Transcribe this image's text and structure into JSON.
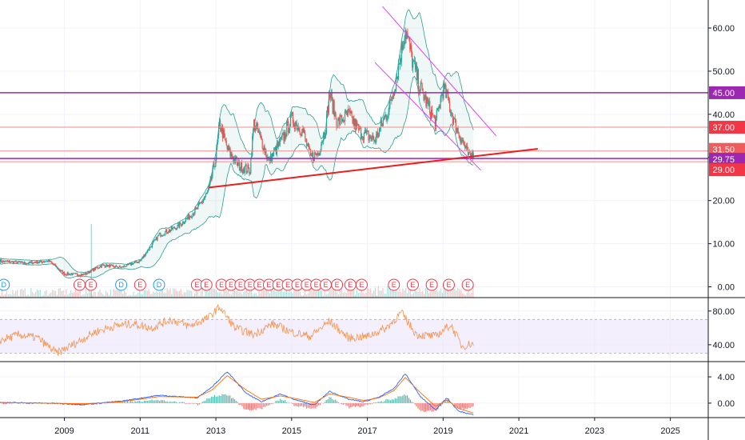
{
  "chart_data": [
    {
      "type": "line",
      "panel": "price",
      "description_visible": "candlestick price with bollinger bands",
      "y_ticks": [
        0,
        10,
        20,
        30,
        40,
        50,
        60
      ],
      "y_tick_labels": [
        "0.00",
        "10.00",
        "20.00",
        "30.00",
        "40.00",
        "50.00",
        "60.00"
      ],
      "ylim": [
        -2.5,
        66.5
      ],
      "price_x": [
        2007.3,
        2008.0,
        2008.6,
        2009.0,
        2009.5,
        2010.0,
        2010.5,
        2011.0,
        2011.5,
        2012.0,
        2012.5,
        2012.8,
        2013.0,
        2013.1,
        2013.3,
        2013.6,
        2013.9,
        2014.0,
        2014.2,
        2014.4,
        2014.6,
        2014.8,
        2015.0,
        2015.3,
        2015.5,
        2015.7,
        2015.9,
        2016.0,
        2016.2,
        2016.5,
        2016.8,
        2017.0,
        2017.2,
        2017.4,
        2017.6,
        2017.8,
        2018.0,
        2018.2,
        2018.4,
        2018.6,
        2018.8,
        2019.0,
        2019.1,
        2019.3,
        2019.5,
        2019.7,
        2019.8
      ],
      "price_close": [
        6,
        5.5,
        6,
        3,
        2.8,
        5,
        4.5,
        6,
        12,
        14,
        18,
        22,
        30,
        38,
        32,
        28,
        27,
        38,
        34,
        29,
        32,
        35,
        39,
        36,
        30,
        31,
        37,
        45,
        38,
        40,
        36,
        35,
        34,
        38,
        42,
        50,
        60,
        52,
        46,
        42,
        38,
        46,
        44,
        38,
        34,
        29.8,
        31.5
      ],
      "resistance_line_45": 45.0,
      "resistance_line_37": 37.0,
      "support_line_31_50": 31.5,
      "support_line_29_75": 29.75,
      "support_line_29": 29.0,
      "trendline": {
        "x": [
          2012.8,
          2021.5
        ],
        "y": [
          23,
          32
        ]
      },
      "channel_upper": {
        "x": [
          2017.4,
          2020.4
        ],
        "y": [
          65,
          35
        ]
      },
      "channel_lower": {
        "x": [
          2017.2,
          2020.0
        ],
        "y": [
          52,
          27
        ]
      },
      "price_tags": [
        {
          "label": "45.00",
          "value": 45.0,
          "color": "#9c27b0"
        },
        {
          "label": "37.00",
          "value": 37.0,
          "color": "#f23645"
        },
        {
          "label": "31.50",
          "value": 31.5,
          "color": "#f05b5b"
        },
        {
          "label": "29.75",
          "value": 29.75,
          "color": "#9c27b0"
        },
        {
          "label": "29.00",
          "value": 29.0,
          "color": "#f23645"
        }
      ],
      "event_badges": [
        {
          "label": "D",
          "x": 2007.4,
          "kind": "dividend"
        },
        {
          "label": "E",
          "x": 2009.4,
          "kind": "earnings"
        },
        {
          "label": "E",
          "x": 2009.7,
          "kind": "earnings"
        },
        {
          "label": "D",
          "x": 2010.5,
          "kind": "dividend"
        },
        {
          "label": "E",
          "x": 2011.0,
          "kind": "earnings"
        },
        {
          "label": "D",
          "x": 2011.5,
          "kind": "dividend"
        },
        {
          "label": "E",
          "x": 2012.5,
          "kind": "earnings"
        },
        {
          "label": "E",
          "x": 2012.75,
          "kind": "earnings"
        },
        {
          "label": "E",
          "x": 2013.15,
          "kind": "earnings"
        },
        {
          "label": "E",
          "x": 2013.4,
          "kind": "earnings"
        },
        {
          "label": "E",
          "x": 2013.65,
          "kind": "earnings"
        },
        {
          "label": "E",
          "x": 2013.9,
          "kind": "earnings"
        },
        {
          "label": "E",
          "x": 2014.15,
          "kind": "earnings"
        },
        {
          "label": "E",
          "x": 2014.4,
          "kind": "earnings"
        },
        {
          "label": "E",
          "x": 2014.65,
          "kind": "earnings"
        },
        {
          "label": "E",
          "x": 2014.9,
          "kind": "earnings"
        },
        {
          "label": "E",
          "x": 2015.15,
          "kind": "earnings"
        },
        {
          "label": "E",
          "x": 2015.4,
          "kind": "earnings"
        },
        {
          "label": "E",
          "x": 2015.65,
          "kind": "earnings"
        },
        {
          "label": "E",
          "x": 2015.9,
          "kind": "earnings"
        },
        {
          "label": "E",
          "x": 2016.2,
          "kind": "earnings"
        },
        {
          "label": "E",
          "x": 2016.55,
          "kind": "earnings"
        },
        {
          "label": "E",
          "x": 2016.85,
          "kind": "earnings"
        },
        {
          "label": "E",
          "x": 2017.7,
          "kind": "earnings"
        },
        {
          "label": "E",
          "x": 2018.2,
          "kind": "earnings"
        },
        {
          "label": "E",
          "x": 2018.7,
          "kind": "earnings"
        },
        {
          "label": "E",
          "x": 2019.15,
          "kind": "earnings"
        },
        {
          "label": "E",
          "x": 2019.65,
          "kind": "earnings"
        }
      ]
    },
    {
      "type": "line",
      "panel": "rsi",
      "y_ticks": [
        40,
        80
      ],
      "y_tick_labels": [
        "40.00",
        "80.00"
      ],
      "ylim": [
        20,
        95
      ],
      "band": [
        30,
        70
      ],
      "x": [
        2007.3,
        2007.8,
        2008.3,
        2008.8,
        2009.3,
        2009.8,
        2010.3,
        2010.8,
        2011.3,
        2011.8,
        2012.3,
        2012.8,
        2013.1,
        2013.5,
        2014.0,
        2014.5,
        2015.0,
        2015.5,
        2016.0,
        2016.5,
        2017.0,
        2017.5,
        2017.9,
        2018.3,
        2018.8,
        2019.2,
        2019.5,
        2019.8
      ],
      "values": [
        45,
        52,
        48,
        30,
        42,
        55,
        62,
        65,
        60,
        70,
        62,
        72,
        85,
        60,
        52,
        65,
        55,
        50,
        68,
        48,
        50,
        60,
        78,
        52,
        50,
        64,
        38,
        42
      ]
    },
    {
      "type": "line",
      "panel": "macd",
      "y_ticks": [
        0,
        4
      ],
      "y_tick_labels": [
        "0.00",
        "4.00"
      ],
      "ylim": [
        -2.2,
        6.2
      ],
      "x": [
        2007.3,
        2008.5,
        2009.5,
        2010.5,
        2011.5,
        2012.5,
        2012.9,
        2013.3,
        2013.8,
        2014.2,
        2014.7,
        2015.1,
        2015.6,
        2016.0,
        2016.5,
        2016.9,
        2017.3,
        2017.7,
        2018.0,
        2018.4,
        2018.8,
        2019.1,
        2019.4,
        2019.8
      ],
      "macd_values": [
        0.1,
        0.0,
        -0.2,
        0.3,
        1.2,
        0.8,
        2.5,
        4.8,
        1.5,
        0.2,
        1.4,
        0.5,
        -0.3,
        1.8,
        0.6,
        0.2,
        0.9,
        2.2,
        4.5,
        1.0,
        -1.0,
        0.8,
        -1.2,
        -1.8
      ],
      "signal_values": [
        0.1,
        0.0,
        -0.1,
        0.2,
        1.0,
        0.9,
        2.0,
        4.2,
        2.0,
        0.6,
        1.1,
        0.7,
        0.1,
        1.4,
        0.9,
        0.4,
        0.8,
        1.9,
        3.9,
        1.6,
        -0.5,
        0.5,
        -0.8,
        -1.5
      ]
    },
    {
      "type": "line",
      "panel": "time_axis",
      "x_ticks": [
        2009,
        2011,
        2013,
        2015,
        2017,
        2019,
        2021,
        2023,
        2025
      ],
      "x_tick_labels": [
        "2009",
        "2011",
        "2013",
        "2015",
        "2017",
        "2019",
        "2021",
        "2023",
        "2025"
      ],
      "xlim": [
        2007.3,
        2026.0
      ]
    }
  ],
  "colors": {
    "grid": "#f0f3fa",
    "separator": "#131722",
    "up": "#26a69a",
    "down": "#ef5350",
    "band": "#2a9d8f",
    "rsi": "#f7934c",
    "rsi_band": "#e9e0fb",
    "macd": "#2962ff",
    "signal": "#ff6d00",
    "trend": "#e91e1e",
    "channel": "#e040fb",
    "magenta": "#9c27b0",
    "red_line": "#f28c8c"
  }
}
